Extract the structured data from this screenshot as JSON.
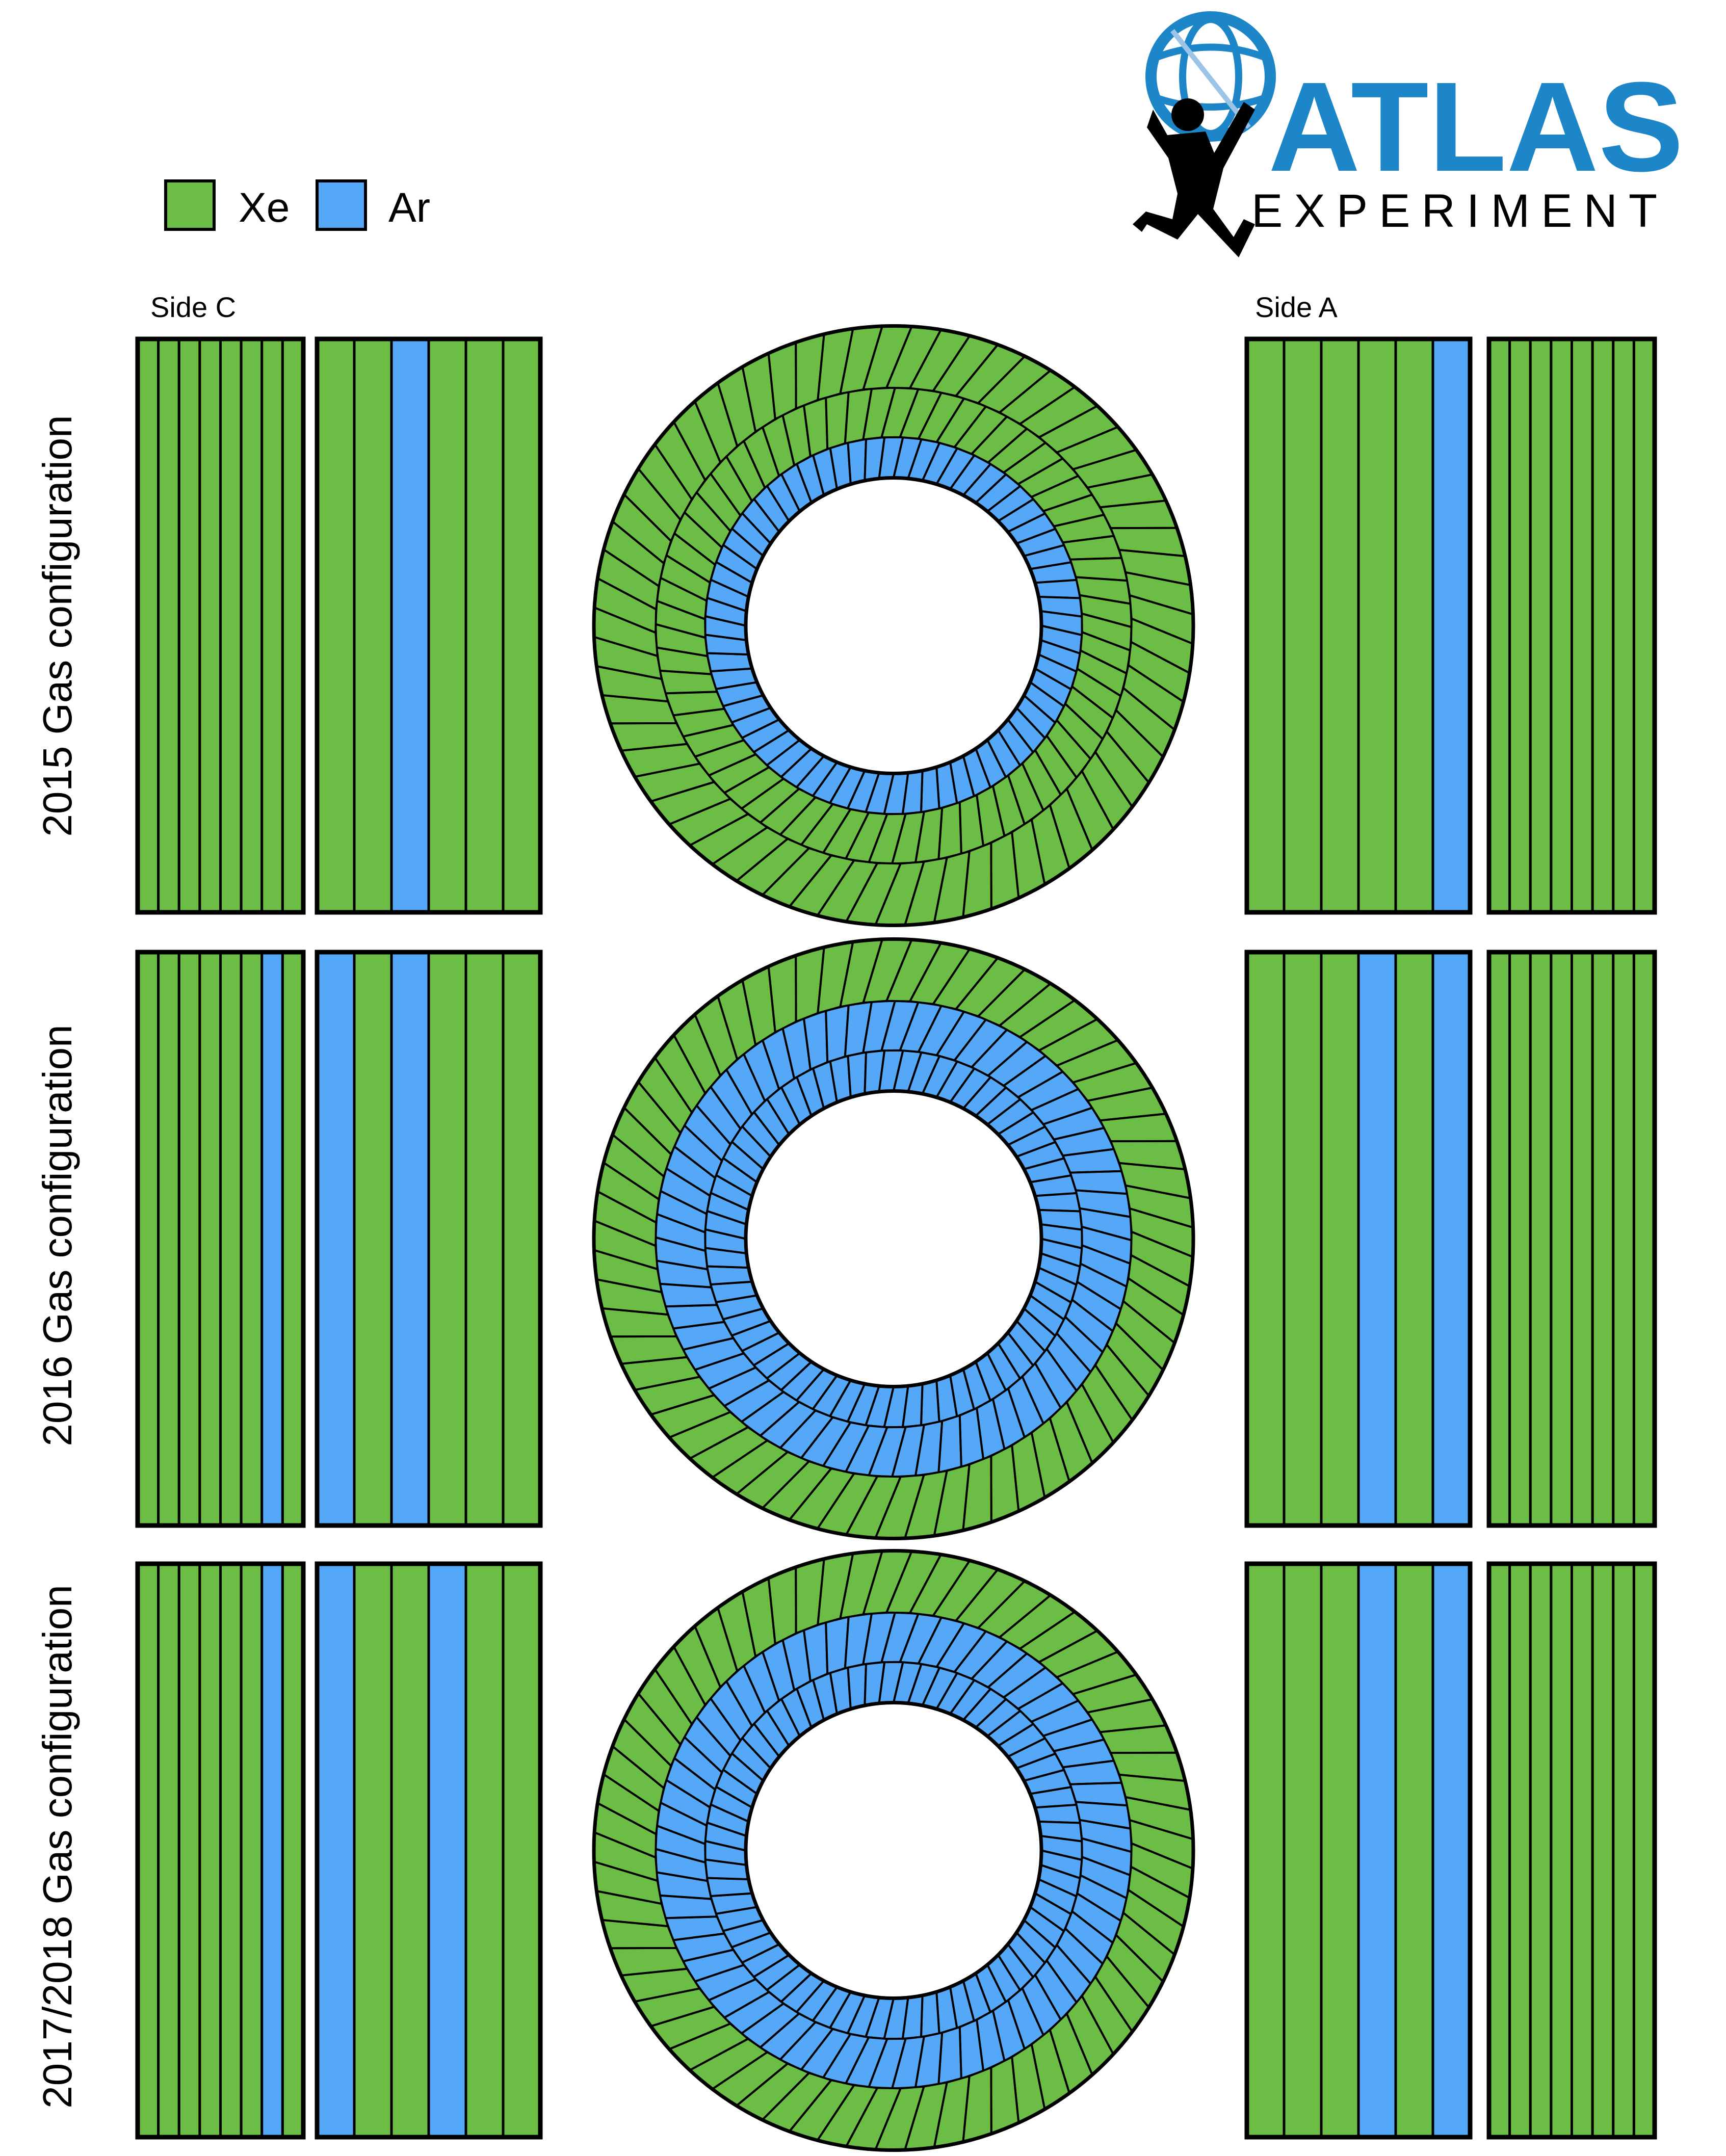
{
  "logo": {
    "name": "ATLAS",
    "subtitle": "EXPERIMENT",
    "brand_color": "#1c86c8"
  },
  "legend": [
    {
      "label": "Xe",
      "color": "#6cbd45"
    },
    {
      "label": "Ar",
      "color": "#55a8f7"
    }
  ],
  "side_labels": {
    "left": "Side C",
    "right": "Side A"
  },
  "colors": {
    "Xe": "#6cbd45",
    "Ar": "#55a8f7",
    "outline": "#000000"
  },
  "configurations": [
    {
      "label": "2015 Gas configuration",
      "side_c_wheels_b": [
        "Xe",
        "Xe",
        "Xe",
        "Xe",
        "Xe",
        "Xe",
        "Xe",
        "Xe"
      ],
      "side_c_wheels_a": [
        "Xe",
        "Xe",
        "Ar",
        "Xe",
        "Xe",
        "Xe"
      ],
      "barrel_rings_inner_to_outer": [
        "Ar",
        "Xe",
        "Xe"
      ],
      "side_a_wheels_a": [
        "Xe",
        "Xe",
        "Xe",
        "Xe",
        "Xe",
        "Ar"
      ],
      "side_a_wheels_b": [
        "Xe",
        "Xe",
        "Xe",
        "Xe",
        "Xe",
        "Xe",
        "Xe",
        "Xe"
      ]
    },
    {
      "label": "2016 Gas configuration",
      "side_c_wheels_b": [
        "Xe",
        "Xe",
        "Xe",
        "Xe",
        "Xe",
        "Xe",
        "Ar",
        "Xe"
      ],
      "side_c_wheels_a": [
        "Ar",
        "Xe",
        "Ar",
        "Xe",
        "Xe",
        "Xe"
      ],
      "barrel_rings_inner_to_outer": [
        "Ar",
        "Ar",
        "Xe"
      ],
      "side_a_wheels_a": [
        "Xe",
        "Xe",
        "Xe",
        "Ar",
        "Xe",
        "Ar"
      ],
      "side_a_wheels_b": [
        "Xe",
        "Xe",
        "Xe",
        "Xe",
        "Xe",
        "Xe",
        "Xe",
        "Xe"
      ]
    },
    {
      "label": "2017/2018 Gas configuration",
      "side_c_wheels_b": [
        "Xe",
        "Xe",
        "Xe",
        "Xe",
        "Xe",
        "Xe",
        "Ar",
        "Xe"
      ],
      "side_c_wheels_a": [
        "Ar",
        "Xe",
        "Xe",
        "Ar",
        "Xe",
        "Xe"
      ],
      "barrel_rings_inner_to_outer": [
        "Ar",
        "Ar",
        "Xe"
      ],
      "side_a_wheels_a": [
        "Xe",
        "Xe",
        "Xe",
        "Ar",
        "Xe",
        "Ar"
      ],
      "side_a_wheels_b": [
        "Xe",
        "Xe",
        "Xe",
        "Xe",
        "Xe",
        "Xe",
        "Xe",
        "Xe"
      ]
    }
  ]
}
